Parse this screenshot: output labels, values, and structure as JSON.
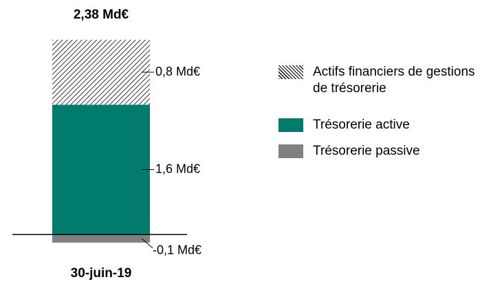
{
  "chart_data": {
    "type": "stacked_bar",
    "total_label": "2,38 Md€",
    "categories": [
      "30-juin-19"
    ],
    "series": [
      {
        "name": "Actifs financiers de gestions de trésorerie",
        "color": "hatch",
        "values": [
          0.8
        ],
        "value_labels": [
          "0,8 Md€"
        ]
      },
      {
        "name": "Trésorerie active",
        "color": "#007b6c",
        "values": [
          1.6
        ],
        "value_labels": [
          "1,6 Md€"
        ]
      },
      {
        "name": "Trésorerie passive",
        "color": "#808080",
        "values": [
          -0.1
        ],
        "value_labels": [
          "-0,1 Md€"
        ]
      }
    ],
    "ylim": [
      -0.3,
      2.4
    ]
  }
}
